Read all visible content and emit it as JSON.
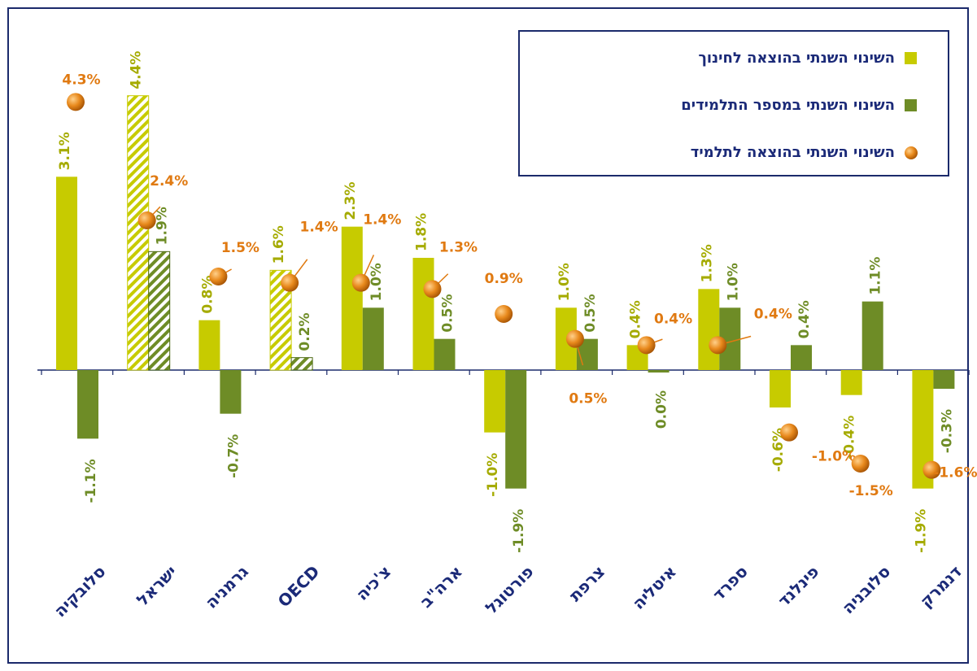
{
  "chart_data": {
    "type": "bar",
    "categories": [
      "סלובקיה",
      "ישראל",
      "גרמניה",
      "OECD",
      "צ'כיה",
      "ארה\"ב",
      "פורטוגל",
      "צרפת",
      "איטליה",
      "ספרד",
      "פינלנד",
      "סלובניה",
      "דנמרק"
    ],
    "hatched": [
      false,
      true,
      false,
      true,
      false,
      false,
      false,
      false,
      false,
      false,
      false,
      false,
      false
    ],
    "ylim": [
      -3,
      5.4
    ],
    "legend": "top-right",
    "series": [
      {
        "name": "השינוי השנתי בהוצאה לחינוך",
        "type": "bar",
        "color": "#c7cb00",
        "label_color": "#a5ab00",
        "values": [
          3.1,
          4.4,
          0.8,
          1.6,
          2.3,
          1.8,
          -1.0,
          1.0,
          0.4,
          1.3,
          -0.6,
          -0.4,
          -1.9
        ],
        "value_labels": [
          "3.1%",
          "4.4%",
          "0.8%",
          "1.6%",
          "2.3%",
          "1.8%",
          "-1.0%",
          "1.0%",
          "0.4%",
          "1.3%",
          "-0.6%",
          "-0.4%",
          "-1.9%"
        ]
      },
      {
        "name": "השינוי השנתי במספר התלמידים",
        "type": "bar",
        "color": "#6e8c26",
        "label_color": "#6e8c26",
        "values": [
          -1.1,
          1.9,
          -0.7,
          0.2,
          1.0,
          0.5,
          -1.9,
          0.5,
          0.0,
          1.0,
          0.4,
          1.1,
          -0.3
        ],
        "value_labels": [
          "-1.1%",
          "1.9%",
          "-0.7%",
          "0.2%",
          "1.0%",
          "0.5%",
          "-1.9%",
          "0.5%",
          "0.0%",
          "1.0%",
          "0.4%",
          "1.1%",
          "-0.3%"
        ]
      },
      {
        "name": "השינוי השנתי בהוצאה לתלמיד",
        "type": "scatter",
        "color": "#e07a10",
        "label_color": "#e07a12",
        "values": [
          4.3,
          2.4,
          1.5,
          1.4,
          1.4,
          1.3,
          0.9,
          0.5,
          0.4,
          0.4,
          -1.0,
          -1.5,
          -1.6
        ],
        "value_labels": [
          "4.3%",
          "2.4%",
          "1.5%",
          "1.4%",
          "1.4%",
          "1.3%",
          "0.9%",
          "0.5%",
          "0.4%",
          "0.4%",
          "-1.0%",
          "-1.5%",
          "-1.6%"
        ]
      }
    ]
  }
}
